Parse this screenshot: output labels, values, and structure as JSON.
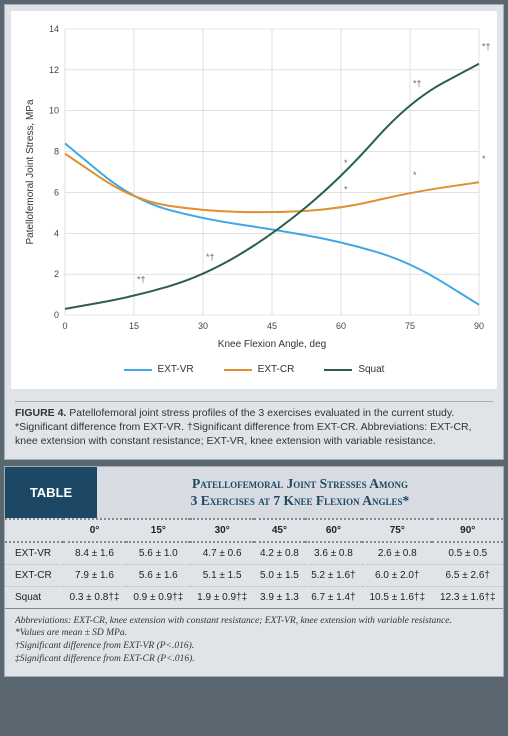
{
  "chart": {
    "type": "line",
    "xlabel": "Knee Flexion Angle, deg",
    "ylabel": "Patellofemoral Joint Stress, MPa",
    "xlim": [
      0,
      90
    ],
    "ylim": [
      0,
      14
    ],
    "xticks": [
      0,
      15,
      30,
      45,
      60,
      75,
      90
    ],
    "yticks": [
      0,
      2,
      4,
      6,
      8,
      10,
      12,
      14
    ],
    "label_fontsize": 10,
    "tick_fontsize": 9,
    "background_color": "#ffffff",
    "grid_color": "#cfcfcf",
    "series": [
      {
        "name": "EXT-VR",
        "color": "#3fa7e6",
        "width": 2,
        "x": [
          0,
          15,
          30,
          45,
          60,
          75,
          90
        ],
        "y": [
          8.4,
          5.6,
          4.7,
          4.2,
          3.6,
          2.6,
          0.5
        ]
      },
      {
        "name": "EXT-CR",
        "color": "#e0902e",
        "width": 2,
        "x": [
          0,
          15,
          30,
          45,
          60,
          75,
          90
        ],
        "y": [
          7.9,
          5.6,
          5.1,
          5.0,
          5.2,
          6.0,
          6.5
        ]
      },
      {
        "name": "Squat",
        "color": "#2a5f4e",
        "width": 2,
        "x": [
          0,
          15,
          30,
          45,
          60,
          75,
          90
        ],
        "y": [
          0.3,
          0.9,
          1.9,
          3.9,
          6.7,
          10.5,
          12.3
        ]
      }
    ],
    "markers": [
      {
        "x": 15,
        "y": 1.4,
        "text": "*†"
      },
      {
        "x": 30,
        "y": 2.5,
        "text": "*†"
      },
      {
        "x": 60,
        "y": 7.1,
        "text": "*"
      },
      {
        "x": 75,
        "y": 11.0,
        "text": "*†"
      },
      {
        "x": 90,
        "y": 12.8,
        "text": "*†"
      },
      {
        "x": 60,
        "y": 5.8,
        "text": "*",
        "color": "#e0902e"
      },
      {
        "x": 75,
        "y": 6.5,
        "text": "*",
        "color": "#e0902e"
      },
      {
        "x": 90,
        "y": 7.3,
        "text": "*",
        "color": "#e0902e"
      }
    ]
  },
  "figure_caption": {
    "label": "FIGURE 4.",
    "text": "Patellofemoral joint stress profiles of the 3 exercises evaluated in the current study. *Significant difference from EXT-VR. †Significant difference from EXT-CR. Abbreviations: EXT-CR, knee extension with constant resistance; EXT-VR, knee extension with variable resistance."
  },
  "table": {
    "badge": "TABLE",
    "title_line1": "Patellofemoral Joint Stresses Among",
    "title_line2": "3 Exercises at 7 Knee Flexion Angles*",
    "title_color": "#1c4866",
    "columns": [
      "",
      "0°",
      "15°",
      "30°",
      "45°",
      "60°",
      "75°",
      "90°"
    ],
    "rows": [
      [
        "EXT-VR",
        "8.4 ± 1.6",
        "5.6 ± 1.0",
        "4.7 ± 0.6",
        "4.2 ± 0.8",
        "3.6 ± 0.8",
        "2.6 ± 0.8",
        "0.5 ± 0.5"
      ],
      [
        "EXT-CR",
        "7.9 ± 1.6",
        "5.6 ± 1.6",
        "5.1 ± 1.5",
        "5.0 ± 1.5",
        "5.2 ± 1.6†",
        "6.0 ± 2.0†",
        "6.5 ± 2.6†"
      ],
      [
        "Squat",
        "0.3 ± 0.8†‡",
        "0.9 ± 0.9†‡",
        "1.9 ± 0.9†‡",
        "3.9 ± 1.3",
        "6.7 ± 1.4†",
        "10.5 ± 1.6†‡",
        "12.3 ± 1.6†‡"
      ]
    ],
    "footnotes": [
      "Abbreviations: EXT-CR, knee extension with constant resistance; EXT-VR, knee extension with variable resistance.",
      "*Values are mean ± SD MPa.",
      "†Significant difference from EXT-VR (P<.016).",
      "‡Significant difference from EXT-CR (P<.016)."
    ]
  }
}
